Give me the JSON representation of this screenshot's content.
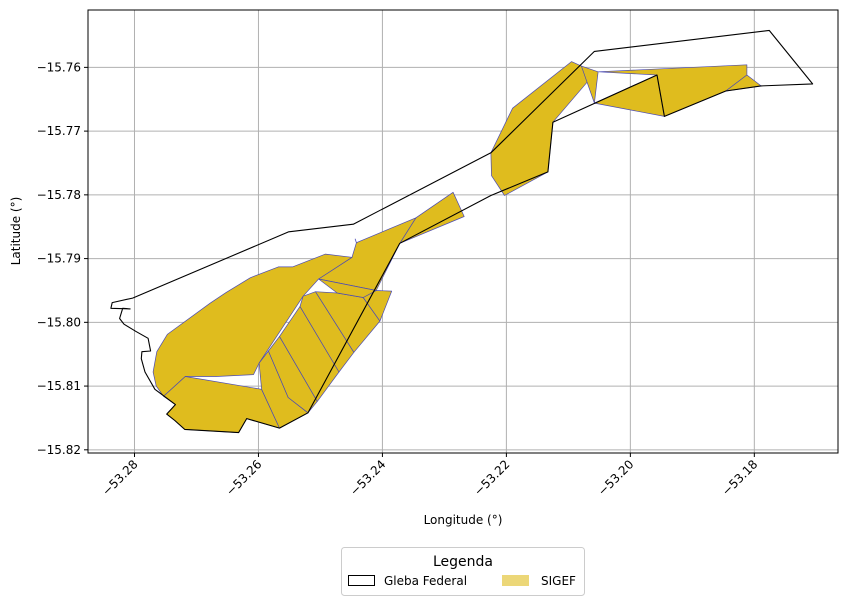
{
  "chart_data": {
    "type": "map",
    "xlabel": "Longitude (°)",
    "ylabel": "Latitude (°)",
    "xlim": [
      -53.2875,
      -53.1665
    ],
    "ylim": [
      -15.8205,
      -15.751
    ],
    "grid": true,
    "x_ticks": [
      -53.28,
      -53.26,
      -53.24,
      -53.22,
      -53.2,
      -53.18
    ],
    "x_tick_labels": [
      "−53.28",
      "−53.26",
      "−53.24",
      "−53.22",
      "−53.20",
      "−53.18"
    ],
    "y_ticks": [
      -15.76,
      -15.77,
      -15.78,
      -15.79,
      -15.8,
      -15.81,
      -15.82
    ],
    "y_tick_labels": [
      "−15.76",
      "−15.77",
      "−15.78",
      "−15.79",
      "−15.80",
      "−15.81",
      "−15.82"
    ],
    "legend": {
      "title": "Legenda",
      "placement": "bottom-center, below plot",
      "entries": [
        {
          "label": "Gleba Federal",
          "style": "outline"
        },
        {
          "label": "SIGEF",
          "style": "fill"
        }
      ]
    },
    "colors": {
      "gleba_edge": "#000000",
      "sigef_fill": "#dfbc1e",
      "sigef_edge": "#4b4bb4",
      "grid": "#b0b0b0"
    },
    "series": [
      {
        "name": "Gleba Federal",
        "style": "outline",
        "polygon": [
          [
            -53.2803,
            -15.7962
          ],
          [
            -53.2551,
            -15.7858
          ],
          [
            -53.2447,
            -15.7846
          ],
          [
            -53.2225,
            -15.7734
          ],
          [
            -53.2058,
            -15.7575
          ],
          [
            -53.1776,
            -15.7542
          ],
          [
            -53.1706,
            -15.7626
          ],
          [
            -53.1789,
            -15.7629
          ],
          [
            -53.1846,
            -15.7637
          ],
          [
            -53.1945,
            -15.7677
          ],
          [
            -53.1957,
            -15.7612
          ],
          [
            -53.2125,
            -15.7686
          ],
          [
            -53.2133,
            -15.7764
          ],
          [
            -53.2225,
            -15.7801
          ],
          [
            -53.2372,
            -15.7876
          ],
          [
            -53.252,
            -15.8142
          ],
          [
            -53.2566,
            -15.8166
          ],
          [
            -53.2619,
            -15.8151
          ],
          [
            -53.2632,
            -15.8173
          ],
          [
            -53.2719,
            -15.8168
          ],
          [
            -53.2735,
            -15.8154
          ],
          [
            -53.2748,
            -15.8144
          ],
          [
            -53.2734,
            -15.8129
          ],
          [
            -53.2767,
            -15.8105
          ],
          [
            -53.2783,
            -15.8078
          ],
          [
            -53.2789,
            -15.8057
          ],
          [
            -53.2788,
            -15.8046
          ],
          [
            -53.2774,
            -15.8045
          ],
          [
            -53.2778,
            -15.8025
          ],
          [
            -53.2798,
            -15.8014
          ],
          [
            -53.2817,
            -15.8003
          ],
          [
            -53.2824,
            -15.7994
          ],
          [
            -53.2819,
            -15.7978
          ],
          [
            -53.2807,
            -15.7979
          ],
          [
            -53.2838,
            -15.7978
          ],
          [
            -53.2836,
            -15.7969
          ],
          [
            -53.2803,
            -15.7962
          ]
        ]
      },
      {
        "name": "SIGEF",
        "style": "fill",
        "polygons": [
          [
            [
              -53.2346,
              -15.7836
            ],
            [
              -53.2286,
              -15.7796
            ],
            [
              -53.2268,
              -15.7834
            ],
            [
              -53.2372,
              -15.7876
            ]
          ],
          [
            [
              -53.2346,
              -15.7836
            ],
            [
              -53.2442,
              -15.7875
            ],
            [
              -53.2449,
              -15.7898
            ],
            [
              -53.2503,
              -15.7932
            ],
            [
              -53.241,
              -15.795
            ],
            [
              -53.2372,
              -15.7876
            ]
          ],
          [
            [
              -53.2442,
              -15.7875
            ],
            [
              -53.2444,
              -15.7869
            ]
          ],
          [
            [
              -53.2449,
              -15.7898
            ],
            [
              -53.2492,
              -15.7893
            ],
            [
              -53.2545,
              -15.7913
            ],
            [
              -53.2568,
              -15.7913
            ],
            [
              -53.2613,
              -15.793
            ],
            [
              -53.2652,
              -15.7953
            ],
            [
              -53.2678,
              -15.797
            ],
            [
              -53.2747,
              -15.8019
            ],
            [
              -53.2764,
              -15.8046
            ],
            [
              -53.277,
              -15.8078
            ],
            [
              -53.2765,
              -15.81
            ],
            [
              -53.2753,
              -15.8116
            ],
            [
              -53.2718,
              -15.8085
            ],
            [
              -53.2668,
              -15.8085
            ],
            [
              -53.2608,
              -15.8082
            ],
            [
              -53.2599,
              -15.8064
            ],
            [
              -53.2528,
              -15.7959
            ],
            [
              -53.2503,
              -15.7932
            ]
          ],
          [
            [
              -53.2753,
              -15.8116
            ],
            [
              -53.2734,
              -15.8129
            ],
            [
              -53.2748,
              -15.8144
            ],
            [
              -53.2735,
              -15.8154
            ],
            [
              -53.2719,
              -15.8168
            ],
            [
              -53.2632,
              -15.8173
            ],
            [
              -53.2619,
              -15.8151
            ],
            [
              -53.2566,
              -15.8166
            ],
            [
              -53.2595,
              -15.8105
            ],
            [
              -53.2718,
              -15.8085
            ]
          ],
          [
            [
              -53.2599,
              -15.8064
            ],
            [
              -53.2595,
              -15.8105
            ],
            [
              -53.2566,
              -15.8166
            ],
            [
              -53.252,
              -15.8142
            ],
            [
              -53.2552,
              -15.8118
            ],
            [
              -53.2584,
              -15.8045
            ]
          ],
          [
            [
              -53.2584,
              -15.8045
            ],
            [
              -53.2552,
              -15.8118
            ],
            [
              -53.252,
              -15.8142
            ],
            [
              -53.2505,
              -15.8124
            ],
            [
              -53.2566,
              -15.8022
            ]
          ],
          [
            [
              -53.2566,
              -15.8022
            ],
            [
              -53.2505,
              -15.8124
            ],
            [
              -53.247,
              -15.8078
            ],
            [
              -53.2533,
              -15.7975
            ]
          ],
          [
            [
              -53.2533,
              -15.7975
            ],
            [
              -53.247,
              -15.8078
            ],
            [
              -53.2446,
              -15.8047
            ],
            [
              -53.2508,
              -15.7952
            ],
            [
              -53.2528,
              -15.7959
            ]
          ],
          [
            [
              -53.2508,
              -15.7952
            ],
            [
              -53.2446,
              -15.8047
            ],
            [
              -53.2404,
              -15.7998
            ],
            [
              -53.2431,
              -15.7961
            ],
            [
              -53.2473,
              -15.7954
            ]
          ],
          [
            [
              -53.2431,
              -15.7961
            ],
            [
              -53.2404,
              -15.7998
            ],
            [
              -53.2385,
              -15.7951
            ],
            [
              -53.241,
              -15.795
            ]
          ],
          [
            [
              -53.2503,
              -15.7932
            ],
            [
              -53.2473,
              -15.7954
            ],
            [
              -53.2431,
              -15.7961
            ],
            [
              -53.241,
              -15.795
            ]
          ],
          [
            [
              -53.2225,
              -15.7734
            ],
            [
              -53.219,
              -15.7664
            ],
            [
              -53.2095,
              -15.7591
            ],
            [
              -53.2079,
              -15.7598
            ],
            [
              -53.2058,
              -15.761
            ],
            [
              -53.2125,
              -15.7686
            ],
            [
              -53.2133,
              -15.7764
            ],
            [
              -53.2203,
              -15.7801
            ],
            [
              -53.2224,
              -15.777
            ]
          ],
          [
            [
              -53.2079,
              -15.7598
            ],
            [
              -53.2052,
              -15.7607
            ],
            [
              -53.2058,
              -15.7656
            ],
            [
              -53.1957,
              -15.7612
            ],
            [
              -53.1945,
              -15.7677
            ],
            [
              -53.2058,
              -15.7656
            ]
          ],
          [
            [
              -53.2052,
              -15.7607
            ],
            [
              -53.1812,
              -15.7596
            ],
            [
              -53.1812,
              -15.7612
            ],
            [
              -53.1846,
              -15.7637
            ],
            [
              -53.1945,
              -15.7677
            ],
            [
              -53.1957,
              -15.7612
            ]
          ],
          [
            [
              -53.1812,
              -15.7612
            ],
            [
              -53.1789,
              -15.7629
            ],
            [
              -53.1846,
              -15.7637
            ]
          ]
        ]
      }
    ]
  }
}
